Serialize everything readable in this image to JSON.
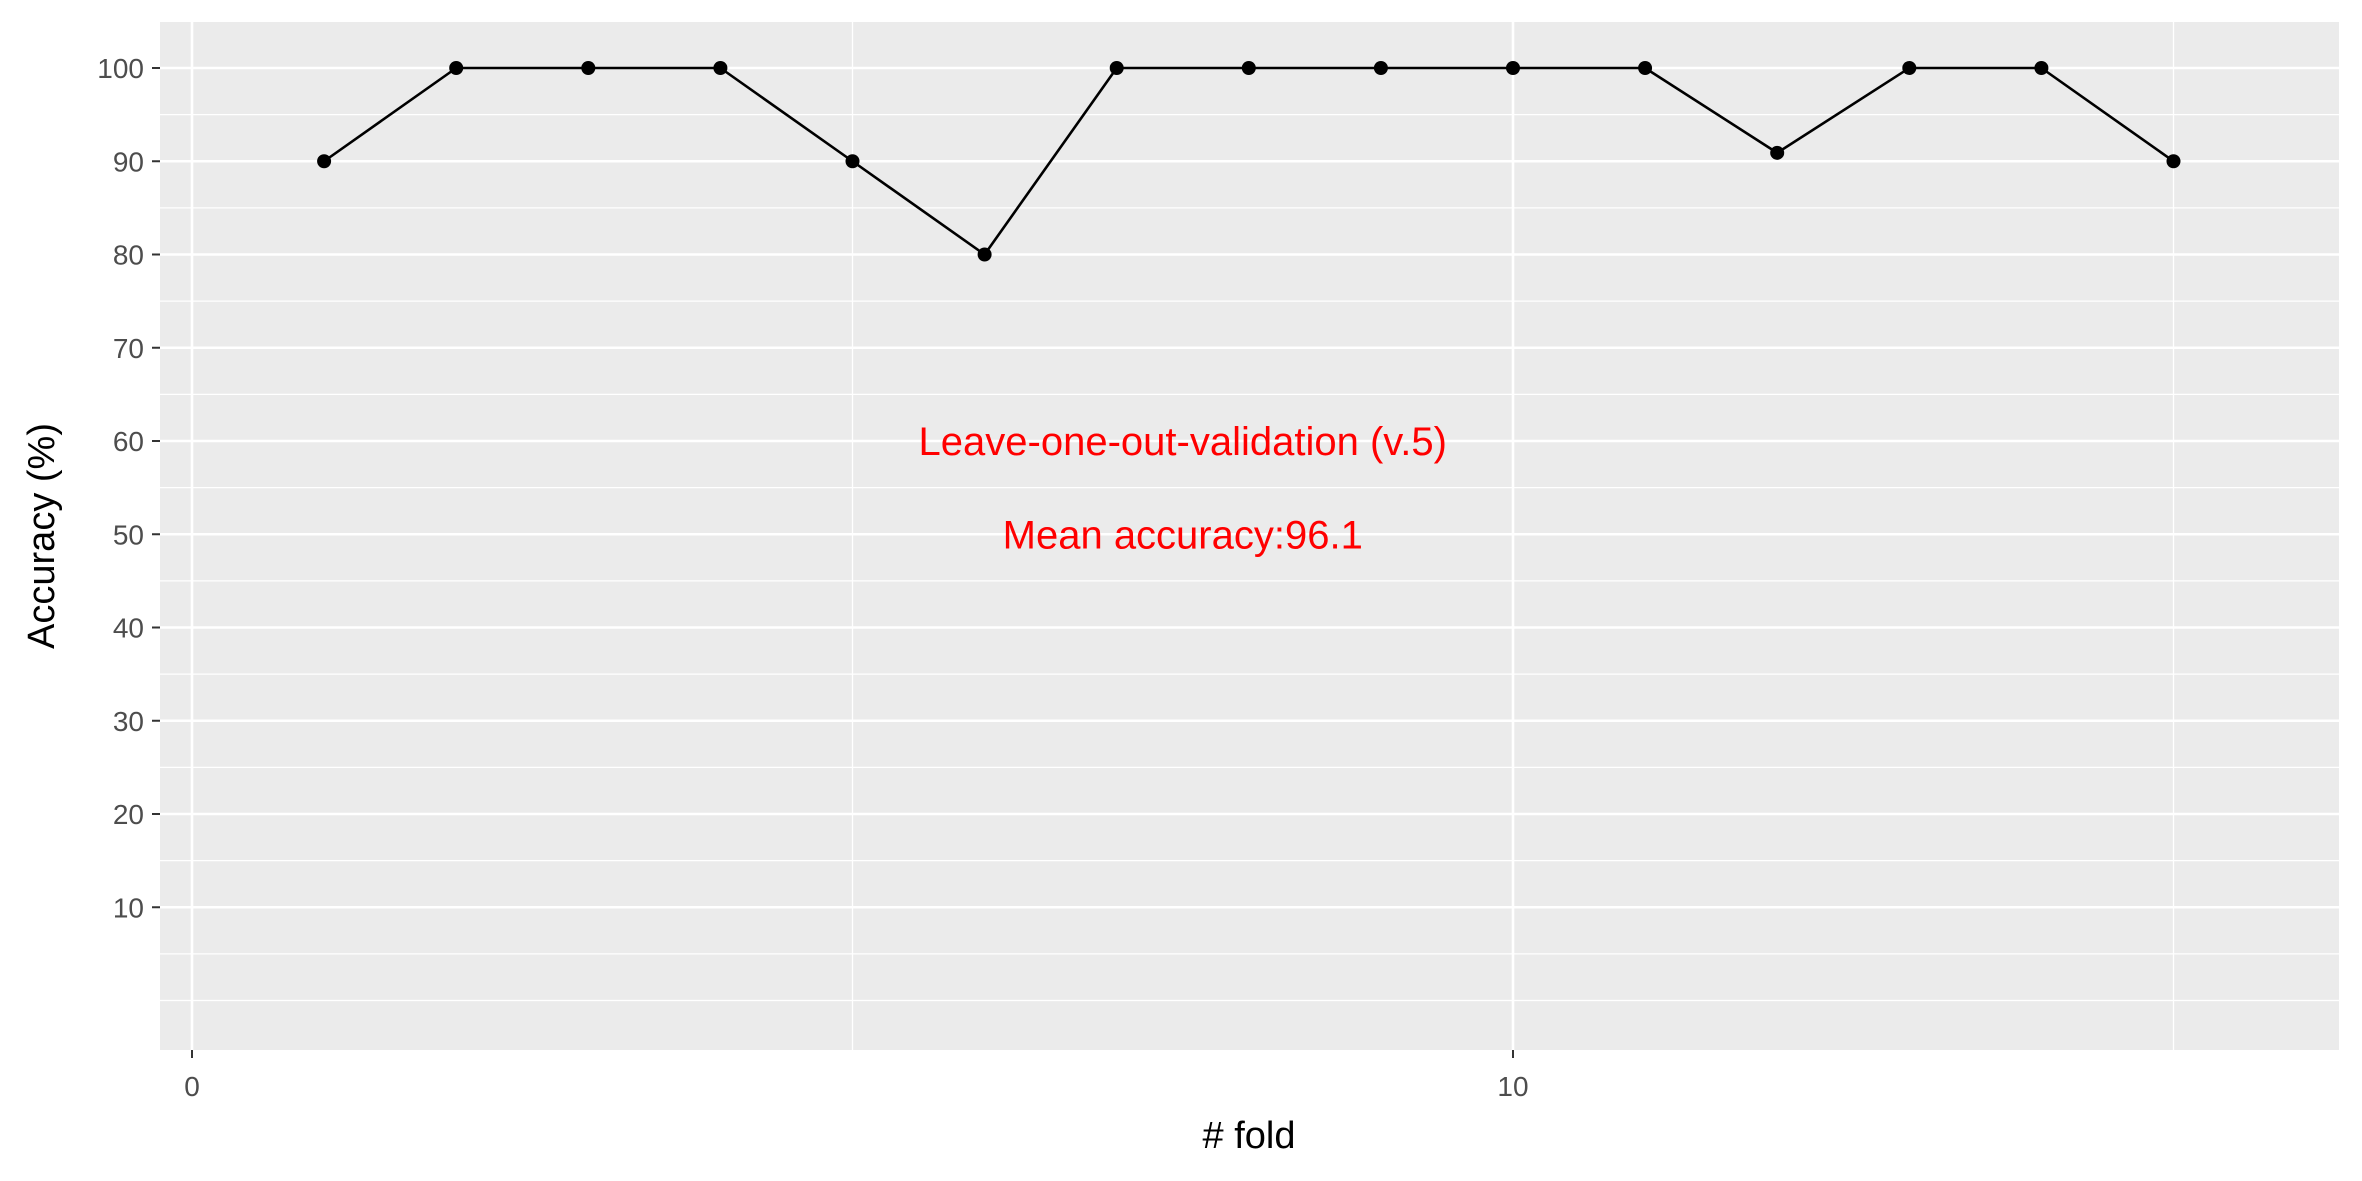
{
  "chart_data": {
    "type": "line",
    "xlabel": "# fold",
    "ylabel": "Accuracy (%)",
    "xlim": [
      0,
      15
    ],
    "ylim": [
      -4,
      105
    ],
    "x_ticks": [
      0,
      10
    ],
    "x_tick_labels": [
      "0",
      "10"
    ],
    "y_ticks": [
      10,
      20,
      30,
      40,
      50,
      60,
      70,
      80,
      90,
      100
    ],
    "y_tick_labels": [
      "10",
      "20",
      "30",
      "40",
      "50",
      "60",
      "70",
      "80",
      "90",
      "100"
    ],
    "grid": true,
    "series": [
      {
        "x": [
          1,
          2,
          3,
          4,
          5,
          6,
          7,
          8,
          9,
          10,
          11,
          12,
          13,
          14,
          15
        ],
        "values": [
          90,
          100,
          100,
          100,
          90,
          80,
          100,
          100,
          100,
          100,
          100,
          90.9,
          100,
          100,
          90
        ]
      }
    ],
    "annotations": [
      {
        "text": "Leave-one-out-validation (v.5)",
        "x": 7.5,
        "y": 60
      },
      {
        "text": "Mean accuracy:96.1",
        "x": 7.5,
        "y": 50
      }
    ],
    "colors": {
      "panel": "#ebebeb",
      "grid": "#ffffff",
      "line": "#000000",
      "annotation": "#ff0000"
    }
  }
}
